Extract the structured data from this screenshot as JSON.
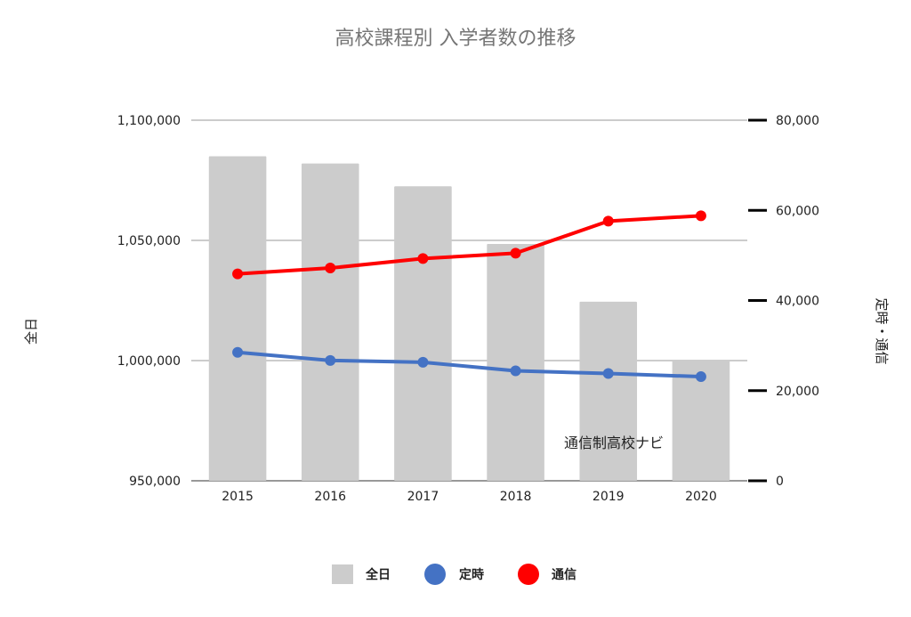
{
  "chart_data": {
    "type": "bar",
    "title": "高校課程別 入学者数の推移",
    "categories": [
      "2015",
      "2016",
      "2017",
      "2018",
      "2019",
      "2020"
    ],
    "left_axis": {
      "label": "全日",
      "ylim": [
        950000,
        1100000
      ],
      "ticks": [
        950000,
        1000000,
        1050000,
        1100000
      ],
      "tick_labels": [
        "950,000",
        "1,000,000",
        "1,050,000",
        "1,100,000"
      ]
    },
    "right_axis": {
      "label": "定時・通信",
      "ylim": [
        0,
        80000
      ],
      "ticks": [
        0,
        20000,
        40000,
        60000,
        80000
      ],
      "tick_labels": [
        "0",
        "20,000",
        "40,000",
        "60,000",
        "80,000"
      ]
    },
    "series": [
      {
        "name": "全日",
        "type": "bar",
        "axis": "left",
        "color": "#cccccc",
        "values": [
          1085000,
          1082000,
          1072500,
          1048500,
          1024500,
          1000000
        ]
      },
      {
        "name": "定時",
        "type": "line",
        "axis": "right",
        "color": "#4472c4",
        "values": [
          28500,
          26700,
          26300,
          24400,
          23800,
          23100
        ]
      },
      {
        "name": "通信",
        "type": "line",
        "axis": "right",
        "color": "#ff0000",
        "values": [
          45900,
          47200,
          49300,
          50500,
          57600,
          58800
        ]
      }
    ],
    "grid": true,
    "legend_position": "bottom",
    "annotation": "通信制高校ナビ"
  }
}
